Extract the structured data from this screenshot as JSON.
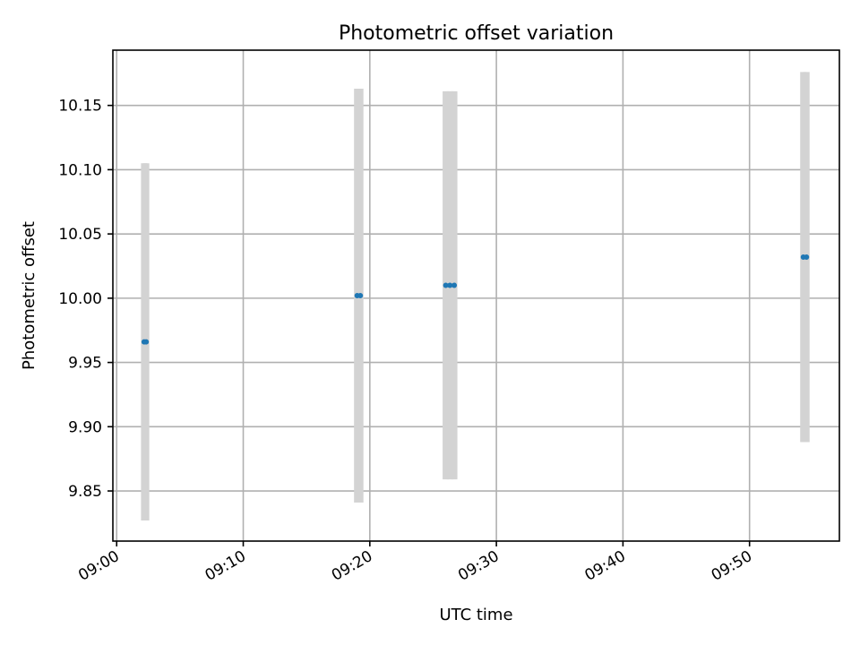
{
  "chart_data": {
    "type": "scatter",
    "title": "Photometric offset variation",
    "xlabel": "UTC time",
    "ylabel": "Photometric offset",
    "x_ticks": [
      "09:00",
      "09:10",
      "09:20",
      "09:30",
      "09:40",
      "09:50"
    ],
    "x_tick_minutes": [
      0,
      10,
      20,
      30,
      40,
      50
    ],
    "xlim_minutes": [
      -0.3,
      57.1
    ],
    "y_ticks": [
      "9.85",
      "9.90",
      "9.95",
      "10.00",
      "10.05",
      "10.10",
      "10.15"
    ],
    "y_tick_values": [
      9.85,
      9.9,
      9.95,
      10.0,
      10.05,
      10.1,
      10.15
    ],
    "ylim": [
      9.811,
      10.193
    ],
    "grid": true,
    "marker_color": "#1f77b4",
    "errorbar_color": "#d3d3d3",
    "points": [
      {
        "x": "09:02:10",
        "x_min": 2.17,
        "y": 9.966,
        "yerr": 0.139
      },
      {
        "x": "09:02:20",
        "x_min": 2.33,
        "y": 9.966,
        "yerr": 0.139
      },
      {
        "x": "09:19:00",
        "x_min": 19.0,
        "y": 10.002,
        "yerr": 0.161
      },
      {
        "x": "09:19:15",
        "x_min": 19.25,
        "y": 10.002,
        "yerr": 0.161
      },
      {
        "x": "09:26:00",
        "x_min": 26.0,
        "y": 10.01,
        "yerr": 0.151
      },
      {
        "x": "09:26:20",
        "x_min": 26.33,
        "y": 10.01,
        "yerr": 0.151
      },
      {
        "x": "09:26:40",
        "x_min": 26.67,
        "y": 10.01,
        "yerr": 0.151
      },
      {
        "x": "09:54:15",
        "x_min": 54.25,
        "y": 10.032,
        "yerr": 0.144
      },
      {
        "x": "09:54:30",
        "x_min": 54.5,
        "y": 10.032,
        "yerr": 0.144
      }
    ]
  }
}
